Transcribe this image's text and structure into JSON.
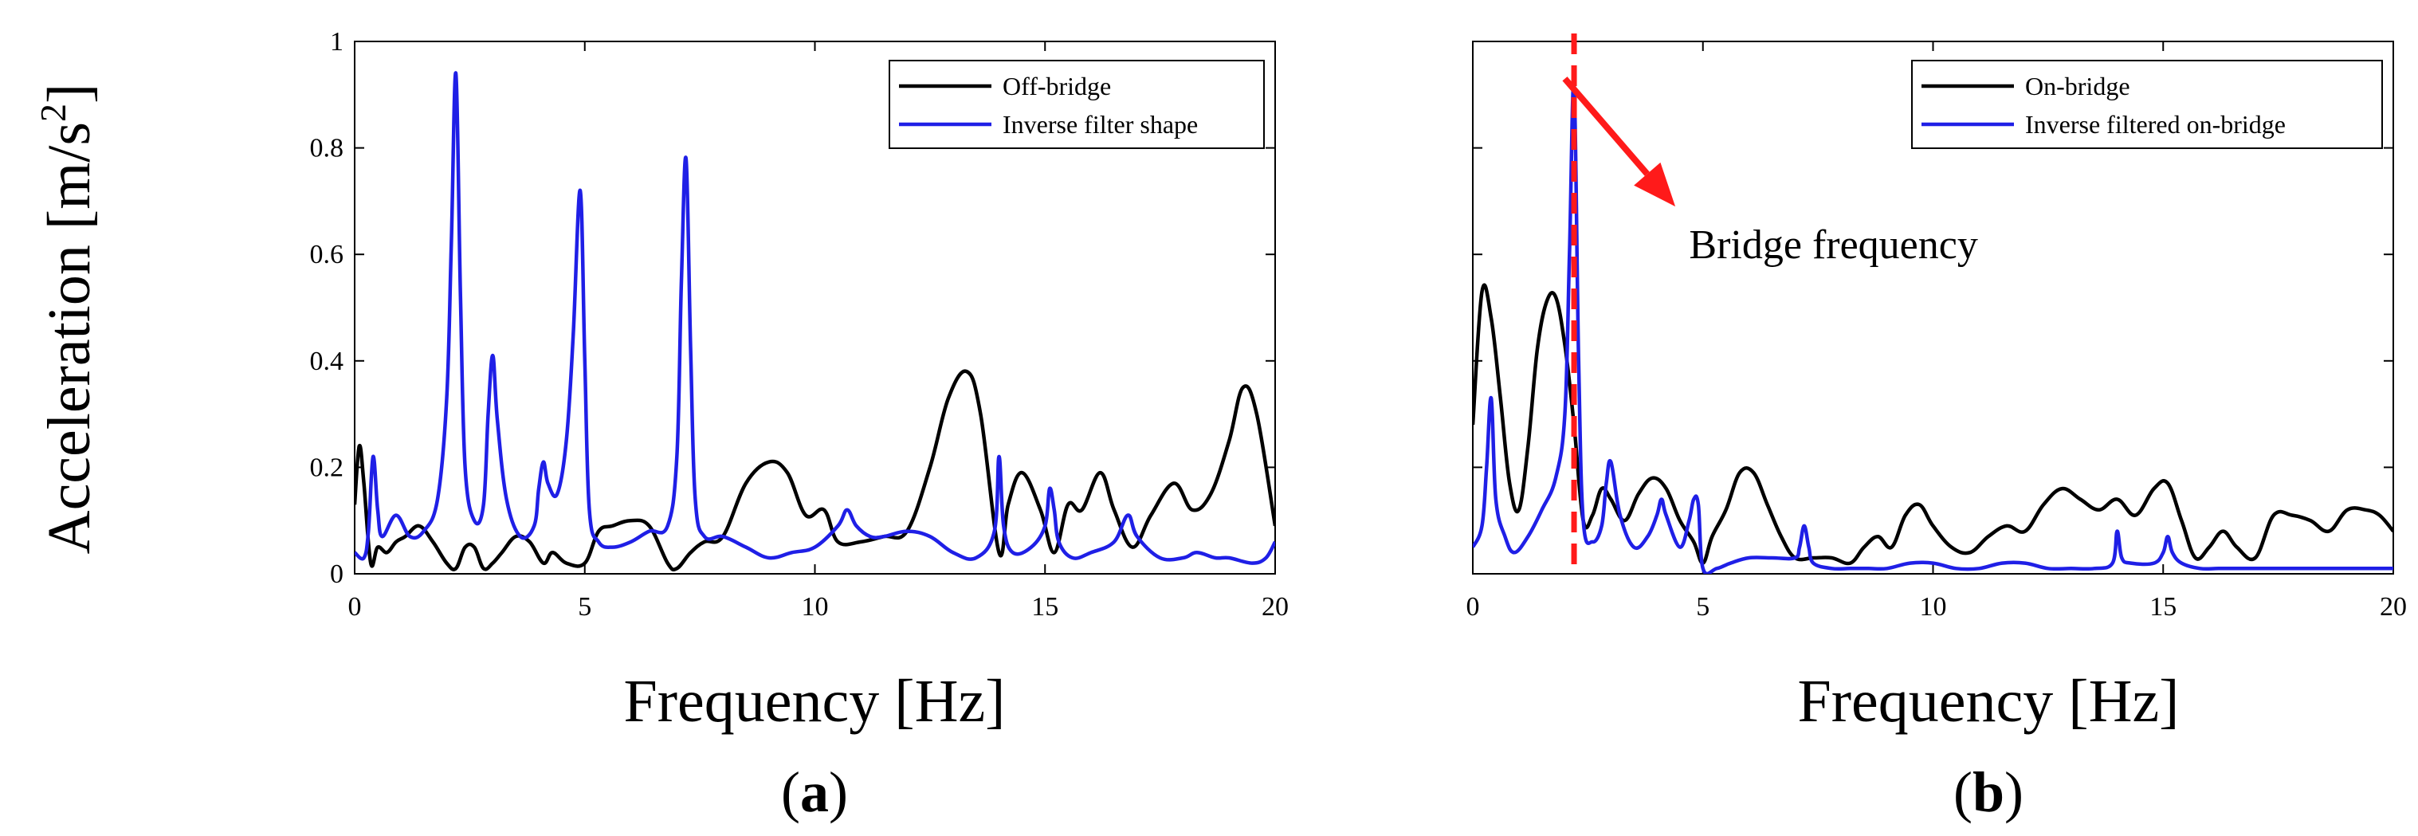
{
  "figure": {
    "ylabel": "Acceleration [m/s",
    "ylabel_sup": "2",
    "ylabel_end": "]"
  },
  "chart_data": [
    {
      "type": "line",
      "panel": "a",
      "panel_label": "a",
      "title": "",
      "xlabel": "Frequency [Hz]",
      "ylabel": "Acceleration [m/s2]",
      "xlim": [
        0,
        20
      ],
      "ylim": [
        0,
        1
      ],
      "xticks": [
        0,
        5,
        10,
        15,
        20
      ],
      "yticks": [
        0,
        0.2,
        0.4,
        0.6,
        0.8,
        1
      ],
      "ytick_labels": [
        "0",
        "0.2",
        "0.4",
        "0.6",
        "0.8",
        "1"
      ],
      "show_yticklabels": true,
      "legend_position": "top-right",
      "series": [
        {
          "name": "Off-bridge",
          "color": "#000000",
          "x": [
            0,
            0.1,
            0.2,
            0.35,
            0.5,
            0.7,
            0.9,
            1.1,
            1.4,
            1.7,
            2.0,
            2.2,
            2.4,
            2.6,
            2.8,
            3.0,
            3.2,
            3.5,
            3.8,
            4.1,
            4.3,
            4.6,
            5.0,
            5.3,
            5.6,
            6.0,
            6.4,
            6.8,
            7.0,
            7.3,
            7.6,
            8.0,
            8.5,
            9.0,
            9.4,
            9.8,
            10.2,
            10.5,
            11.0,
            11.5,
            12.0,
            12.5,
            12.9,
            13.3,
            13.6,
            14.0,
            14.2,
            14.5,
            14.9,
            15.2,
            15.5,
            15.8,
            16.2,
            16.5,
            16.9,
            17.3,
            17.8,
            18.2,
            18.6,
            19.0,
            19.3,
            19.6,
            20.0
          ],
          "y": [
            0.13,
            0.24,
            0.17,
            0.02,
            0.05,
            0.04,
            0.06,
            0.07,
            0.09,
            0.06,
            0.02,
            0.01,
            0.05,
            0.05,
            0.01,
            0.02,
            0.04,
            0.07,
            0.06,
            0.02,
            0.04,
            0.02,
            0.02,
            0.08,
            0.09,
            0.1,
            0.09,
            0.02,
            0.01,
            0.04,
            0.06,
            0.07,
            0.17,
            0.21,
            0.19,
            0.11,
            0.12,
            0.06,
            0.06,
            0.07,
            0.08,
            0.2,
            0.33,
            0.38,
            0.3,
            0.04,
            0.13,
            0.19,
            0.12,
            0.04,
            0.13,
            0.12,
            0.19,
            0.12,
            0.05,
            0.11,
            0.17,
            0.12,
            0.15,
            0.25,
            0.35,
            0.3,
            0.09
          ]
        },
        {
          "name": "Inverse filter shape",
          "color": "#1f1fe6",
          "x": [
            0,
            0.2,
            0.3,
            0.4,
            0.5,
            0.6,
            0.9,
            1.2,
            1.5,
            1.8,
            2.0,
            2.1,
            2.2,
            2.3,
            2.4,
            2.6,
            2.8,
            2.9,
            3.0,
            3.1,
            3.3,
            3.6,
            3.9,
            4.0,
            4.1,
            4.2,
            4.4,
            4.6,
            4.75,
            4.9,
            5.0,
            5.1,
            5.3,
            5.6,
            6.0,
            6.4,
            6.8,
            7.0,
            7.1,
            7.2,
            7.3,
            7.4,
            7.6,
            8.0,
            8.5,
            9.0,
            9.5,
            10.0,
            10.5,
            10.7,
            10.9,
            11.2,
            11.5,
            12.0,
            12.5,
            13.0,
            13.5,
            13.9,
            14.0,
            14.1,
            14.3,
            14.7,
            15.0,
            15.1,
            15.2,
            15.3,
            15.6,
            16.0,
            16.5,
            16.8,
            17.0,
            17.5,
            18.0,
            18.3,
            18.7,
            19.0,
            19.5,
            19.8,
            20.0
          ],
          "y": [
            0.04,
            0.03,
            0.08,
            0.22,
            0.12,
            0.07,
            0.11,
            0.07,
            0.08,
            0.14,
            0.33,
            0.62,
            0.94,
            0.52,
            0.2,
            0.1,
            0.13,
            0.3,
            0.41,
            0.29,
            0.14,
            0.07,
            0.09,
            0.16,
            0.21,
            0.17,
            0.15,
            0.25,
            0.45,
            0.72,
            0.4,
            0.12,
            0.06,
            0.05,
            0.06,
            0.08,
            0.09,
            0.22,
            0.55,
            0.78,
            0.42,
            0.14,
            0.07,
            0.07,
            0.05,
            0.03,
            0.04,
            0.05,
            0.09,
            0.12,
            0.09,
            0.07,
            0.07,
            0.08,
            0.07,
            0.04,
            0.03,
            0.08,
            0.22,
            0.09,
            0.04,
            0.05,
            0.09,
            0.16,
            0.12,
            0.06,
            0.03,
            0.04,
            0.06,
            0.11,
            0.07,
            0.03,
            0.03,
            0.04,
            0.03,
            0.03,
            0.02,
            0.03,
            0.06
          ]
        }
      ]
    },
    {
      "type": "line",
      "panel": "b",
      "panel_label": "b",
      "title": "",
      "xlabel": "Frequency [Hz]",
      "ylabel": "",
      "xlim": [
        0,
        20
      ],
      "ylim": [
        0,
        1
      ],
      "xticks": [
        0,
        5,
        10,
        15,
        20
      ],
      "yticks": [
        0,
        0.2,
        0.4,
        0.6,
        0.8,
        1
      ],
      "ytick_labels": [
        "",
        "",
        "",
        "",
        "",
        ""
      ],
      "show_yticklabels": false,
      "legend_position": "top-right",
      "vline": {
        "x": 2.2,
        "color": "#ff1a1a",
        "style": "dashed"
      },
      "annotation": {
        "text": "Bridge frequency",
        "arrow_color": "#ff1a1a",
        "arrow_from": [
          2.0,
          0.93
        ],
        "arrow_to": [
          4.4,
          0.69
        ],
        "text_at": [
          4.7,
          0.62
        ]
      },
      "series": [
        {
          "name": "On-bridge",
          "color": "#000000",
          "x": [
            0,
            0.2,
            0.4,
            0.6,
            0.8,
            1.0,
            1.2,
            1.4,
            1.6,
            1.8,
            2.0,
            2.2,
            2.4,
            2.6,
            2.8,
            3.0,
            3.3,
            3.6,
            3.9,
            4.2,
            4.5,
            4.8,
            5.0,
            5.2,
            5.5,
            5.8,
            6.1,
            6.4,
            6.7,
            7.0,
            7.4,
            7.8,
            8.2,
            8.5,
            8.8,
            9.1,
            9.4,
            9.7,
            10.0,
            10.4,
            10.8,
            11.2,
            11.6,
            12.0,
            12.4,
            12.8,
            13.2,
            13.6,
            14.0,
            14.4,
            14.8,
            15.1,
            15.4,
            15.7,
            16.0,
            16.3,
            16.6,
            17.0,
            17.4,
            17.8,
            18.2,
            18.6,
            19.0,
            19.4,
            19.7,
            20.0
          ],
          "y": [
            0.28,
            0.53,
            0.48,
            0.33,
            0.17,
            0.12,
            0.24,
            0.42,
            0.51,
            0.52,
            0.43,
            0.28,
            0.1,
            0.11,
            0.16,
            0.14,
            0.1,
            0.15,
            0.18,
            0.16,
            0.1,
            0.06,
            0.02,
            0.07,
            0.12,
            0.19,
            0.19,
            0.13,
            0.07,
            0.03,
            0.03,
            0.03,
            0.02,
            0.05,
            0.07,
            0.05,
            0.11,
            0.13,
            0.09,
            0.05,
            0.04,
            0.07,
            0.09,
            0.08,
            0.13,
            0.16,
            0.14,
            0.12,
            0.14,
            0.11,
            0.16,
            0.17,
            0.1,
            0.03,
            0.05,
            0.08,
            0.05,
            0.03,
            0.11,
            0.11,
            0.1,
            0.08,
            0.12,
            0.12,
            0.11,
            0.08
          ]
        },
        {
          "name": "Inverse filtered on-bridge",
          "color": "#1f1fe6",
          "x": [
            0,
            0.2,
            0.3,
            0.4,
            0.5,
            0.7,
            0.9,
            1.2,
            1.5,
            1.8,
            2.0,
            2.1,
            2.2,
            2.3,
            2.4,
            2.6,
            2.8,
            2.9,
            3.0,
            3.2,
            3.5,
            3.8,
            4.0,
            4.1,
            4.2,
            4.5,
            4.7,
            4.8,
            4.9,
            5.0,
            5.3,
            5.6,
            6.0,
            6.5,
            7.0,
            7.1,
            7.2,
            7.3,
            7.4,
            7.8,
            8.2,
            8.6,
            9.0,
            9.5,
            10.0,
            10.5,
            11.0,
            11.5,
            12.0,
            12.5,
            13.0,
            13.5,
            13.9,
            14.0,
            14.1,
            14.3,
            14.8,
            15.0,
            15.1,
            15.2,
            15.4,
            15.8,
            16.2,
            16.7,
            17.2,
            17.7,
            18.2,
            18.7,
            19.2,
            19.6,
            20.0
          ],
          "y": [
            0.05,
            0.09,
            0.2,
            0.33,
            0.14,
            0.07,
            0.04,
            0.07,
            0.12,
            0.18,
            0.3,
            0.6,
            0.92,
            0.4,
            0.1,
            0.06,
            0.09,
            0.17,
            0.21,
            0.11,
            0.05,
            0.07,
            0.11,
            0.14,
            0.11,
            0.05,
            0.1,
            0.14,
            0.13,
            0.01,
            0.01,
            0.02,
            0.03,
            0.03,
            0.03,
            0.05,
            0.09,
            0.05,
            0.02,
            0.01,
            0.01,
            0.01,
            0.01,
            0.02,
            0.02,
            0.01,
            0.01,
            0.02,
            0.02,
            0.01,
            0.01,
            0.01,
            0.02,
            0.08,
            0.03,
            0.02,
            0.02,
            0.04,
            0.07,
            0.04,
            0.02,
            0.01,
            0.01,
            0.01,
            0.01,
            0.01,
            0.01,
            0.01,
            0.01,
            0.01,
            0.01
          ]
        }
      ]
    }
  ]
}
